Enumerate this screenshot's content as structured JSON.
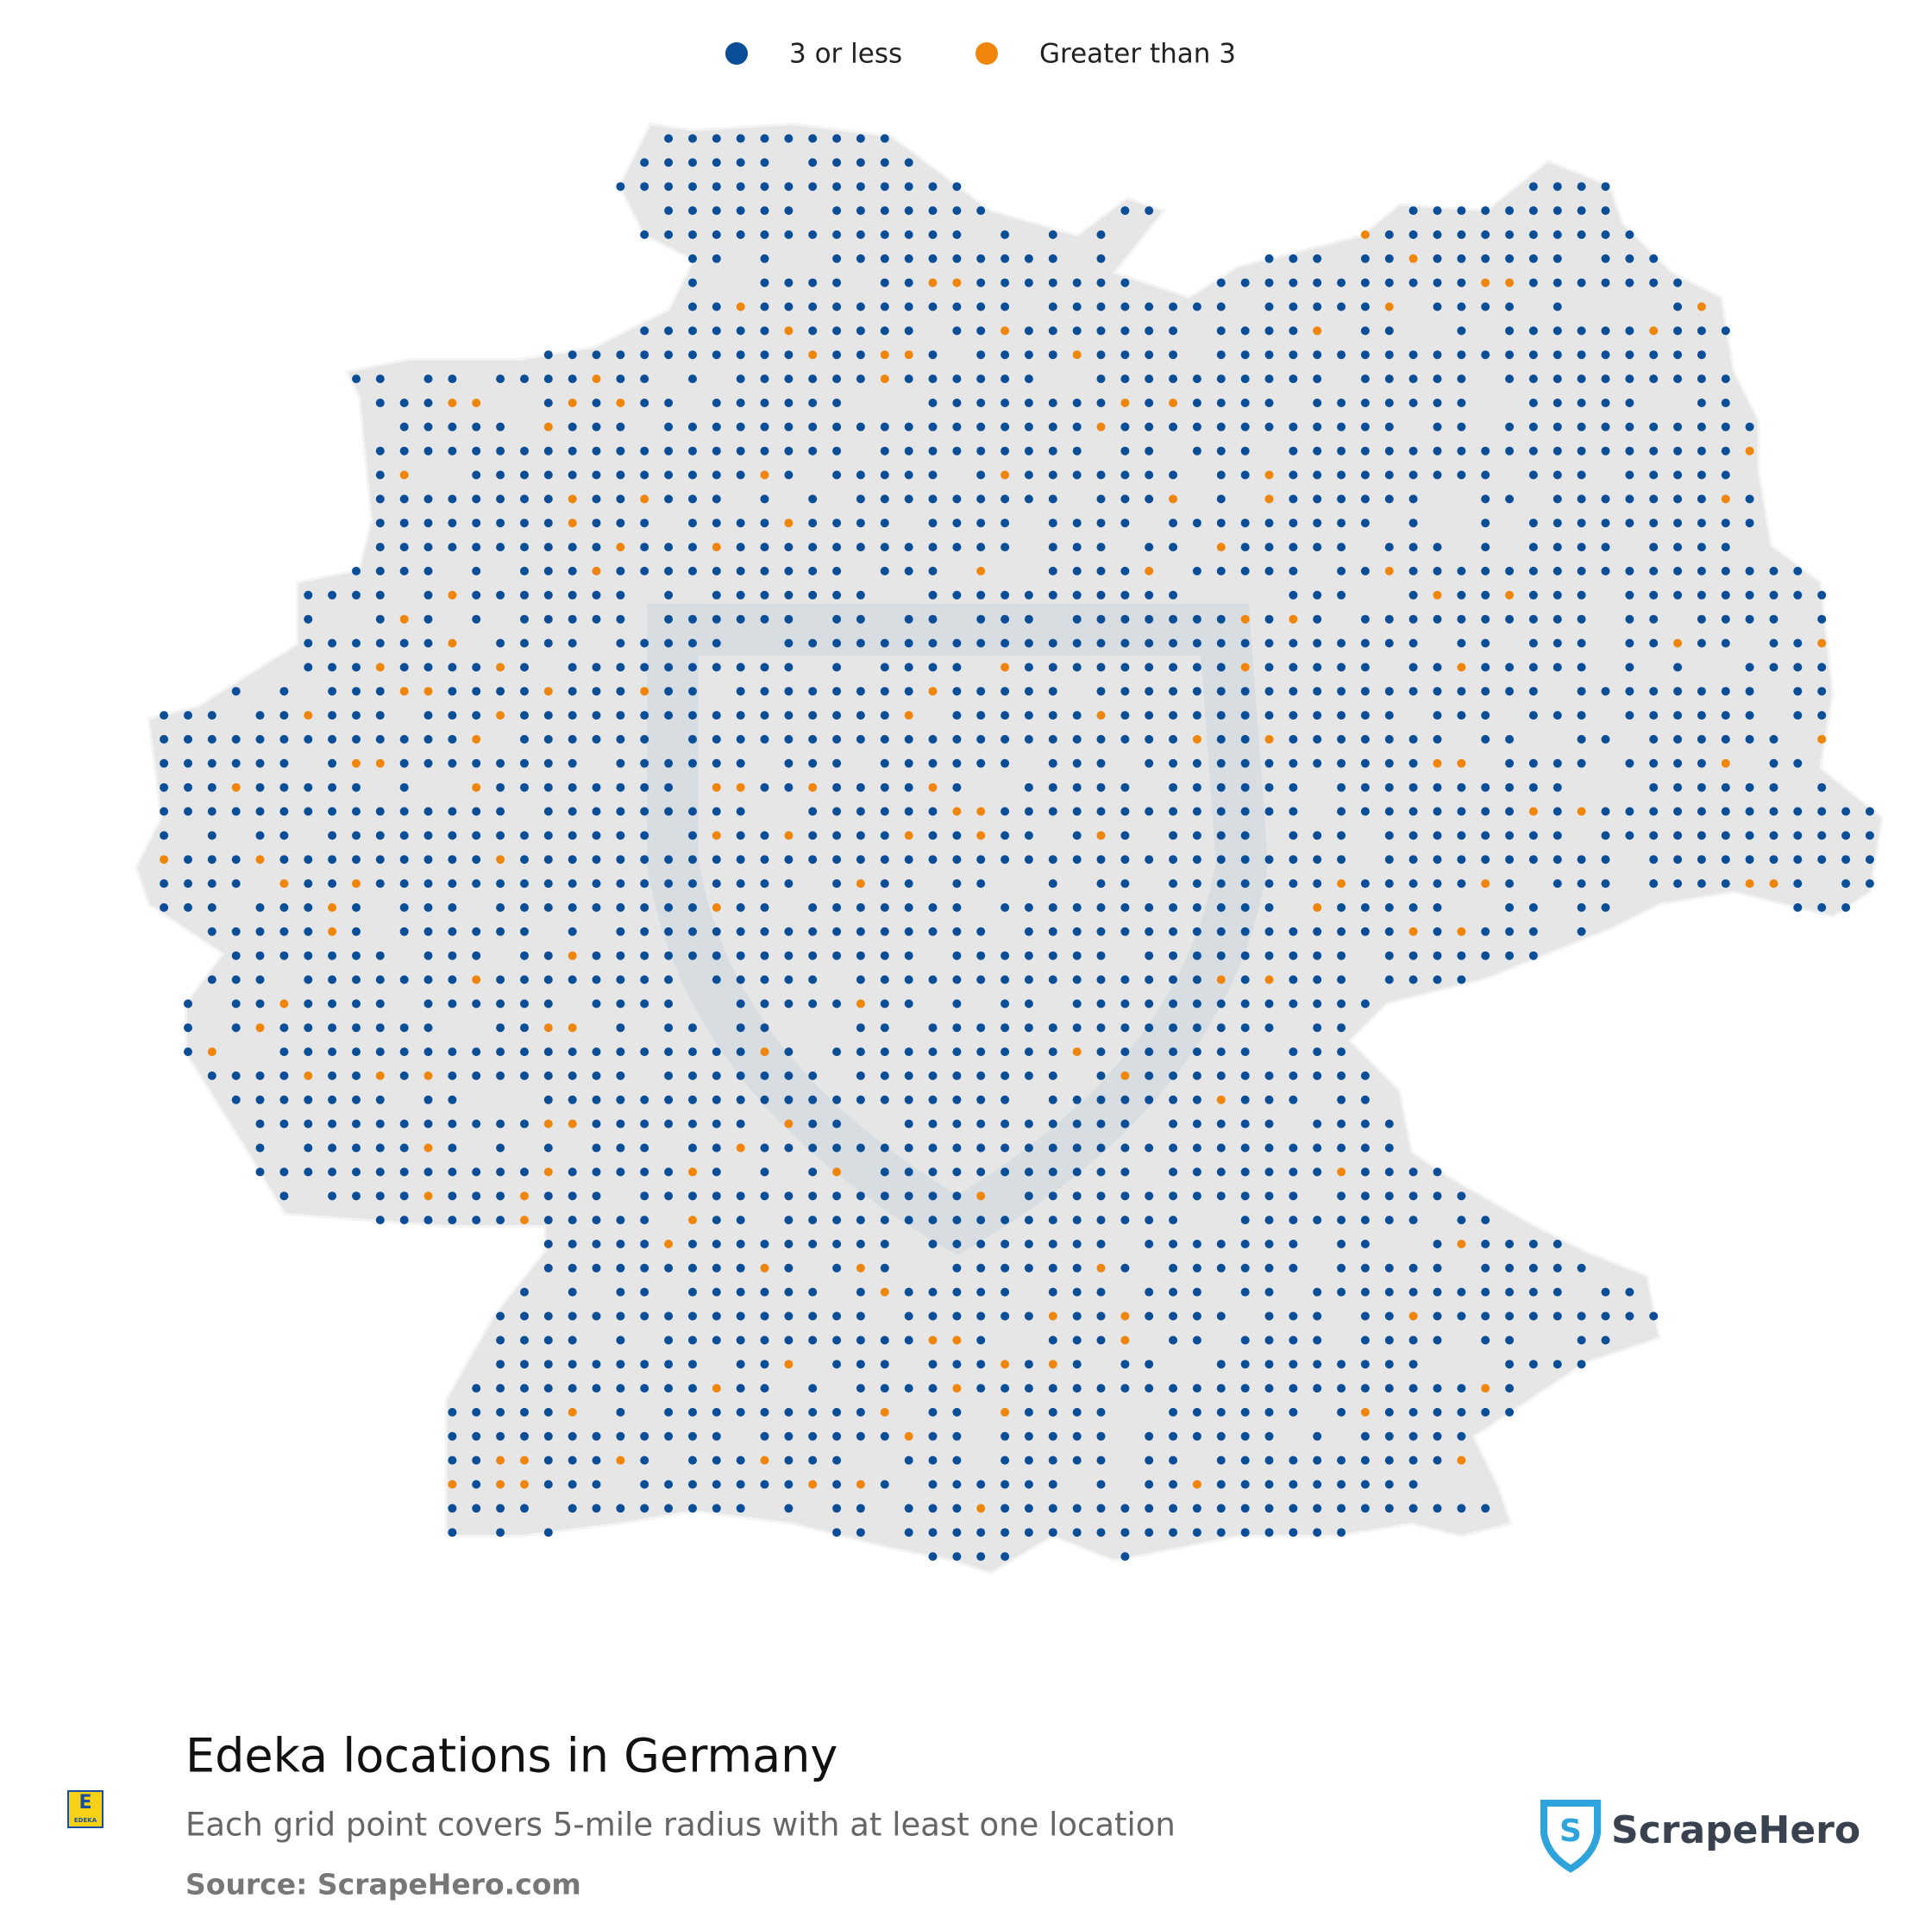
{
  "legend": {
    "items": [
      {
        "label": "3 or less",
        "color": "#0b4e98"
      },
      {
        "label": "Greater than 3",
        "color": "#f0850c"
      }
    ]
  },
  "title": "Edeka locations in Germany",
  "subtitle": "Each grid point covers 5-mile radius with at least one location",
  "source": "Source: ScrapeHero.com",
  "brand": "ScrapeHero",
  "logo": "EDEKA"
}
